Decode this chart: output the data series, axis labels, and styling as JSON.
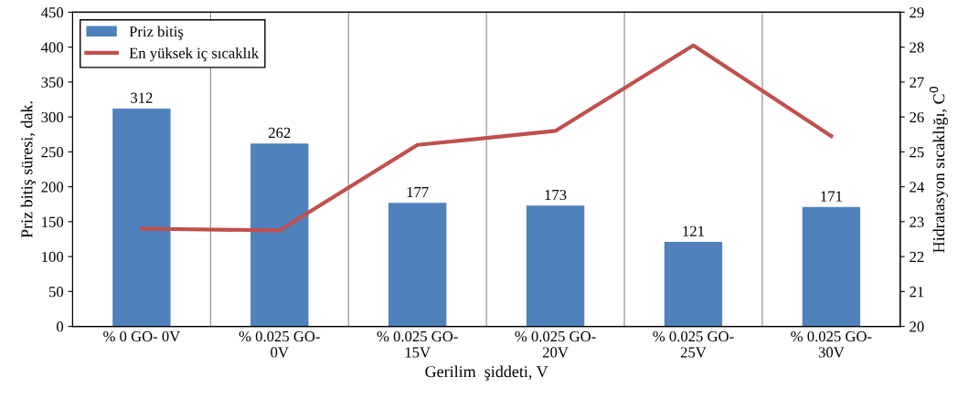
{
  "chart_data": {
    "type": "bar",
    "xlabel": "Gerilim  şiddeti, V",
    "ylabel": "Priz bitiş süresi, dak.",
    "y2label": "Hidratasyon sıcaklığı, C$^{0}$",
    "categories": [
      "% 0 GO- 0V",
      "% 0.025 GO-\n0V",
      "% 0.025 GO-\n15V",
      "% 0.025 GO-\n20V",
      "% 0.025 GO-\n25V",
      "% 0.025 GO-\n30V"
    ],
    "series": [
      {
        "name": "Priz bitiş",
        "color": "#4f81bd",
        "values": [
          312,
          262,
          177,
          173,
          121,
          171
        ],
        "value_labels": [
          "312",
          "262",
          "177",
          "173",
          "121",
          "171"
        ]
      },
      {
        "name": "En yüksek iç sıcaklık",
        "type": "line",
        "axis": "y2",
        "color": "#c0504d",
        "values": [
          22.8,
          22.75,
          25.2,
          25.6,
          28.05,
          25.45
        ]
      }
    ],
    "ylim": [
      0,
      450
    ],
    "yticks": [
      0,
      50,
      100,
      150,
      200,
      250,
      300,
      350,
      400,
      450
    ],
    "y2lim": [
      20,
      29
    ],
    "y2ticks": [
      20,
      21,
      22,
      23,
      24,
      25,
      26,
      27,
      28,
      29
    ],
    "grid": "x",
    "legend": "top left",
    "marker": "none",
    "line_style": "solid"
  }
}
